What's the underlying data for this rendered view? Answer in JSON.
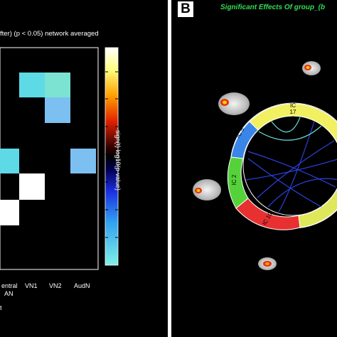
{
  "panel_a": {
    "title": "fter) (p < 0.05) network averaged",
    "x_tick_labels": [
      "entral",
      "AN",
      "VN1",
      "VN2",
      "AudN"
    ],
    "footer": "t",
    "colorbar_label": "-sign(t) log10(p-value)",
    "colors": {
      "light_cyan": "#5ed9e6",
      "pale_teal": "#7ce3d3",
      "light_blue": "#7cc0f2",
      "white": "#ffffff"
    }
  },
  "panel_b": {
    "letter": "B",
    "title": "Significant Effects Of group_(b",
    "ring_labels": [
      "IC\n17",
      "IC\n5",
      "IC\n2",
      "IC\n10"
    ],
    "ring_colors": {
      "yellow": "#f0f060",
      "blue": "#3a86e8",
      "green": "#55d23a",
      "red": "#e83030"
    }
  },
  "chart_data": {
    "type": "heatmap",
    "title": "fter) (p < 0.05) network averaged",
    "x_tick_labels_visible": [
      "entral AN",
      "VN1",
      "VN2",
      "AudN"
    ],
    "colorbar_label": "-sign(t) log10(p-value)",
    "visible_cells_color": [
      "light cyan",
      "pale teal",
      "light blue",
      "light cyan",
      "light blue",
      "white",
      "white"
    ]
  }
}
